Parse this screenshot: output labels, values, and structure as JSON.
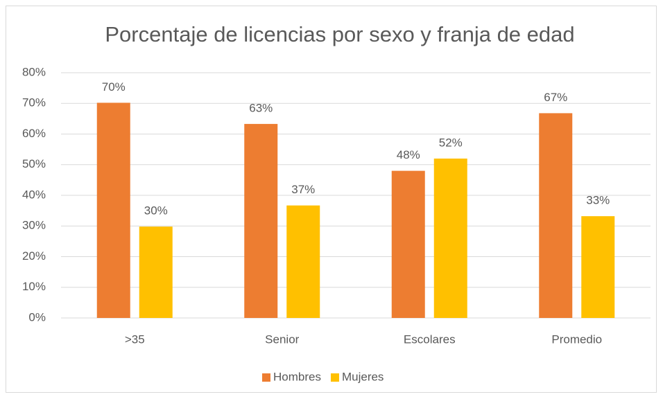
{
  "chart_data": {
    "type": "bar",
    "title": "Porcentaje de licencias por sexo y franja de edad",
    "categories": [
      ">35",
      "Senior",
      "Escolares",
      "Promedio"
    ],
    "series": [
      {
        "name": "Hombres",
        "color": "#ed7d31",
        "values": [
          70.2,
          63.3,
          48,
          66.8
        ],
        "value_labels": [
          "70%",
          "63%",
          "48%",
          "67%"
        ]
      },
      {
        "name": "Mujeres",
        "color": "#ffc000",
        "values": [
          29.8,
          36.7,
          52,
          33.2
        ],
        "value_labels": [
          "30%",
          "37%",
          "52%",
          "33%"
        ]
      }
    ],
    "ylim": [
      0,
      80
    ],
    "yticks": [
      {
        "value": 0,
        "label": "0%"
      },
      {
        "value": 10,
        "label": "10%"
      },
      {
        "value": 20,
        "label": "20%"
      },
      {
        "value": 30,
        "label": "30%"
      },
      {
        "value": 40,
        "label": "40%"
      },
      {
        "value": 50,
        "label": "50%"
      },
      {
        "value": 60,
        "label": "60%"
      },
      {
        "value": 70,
        "label": "70%"
      },
      {
        "value": 80,
        "label": "80%"
      }
    ],
    "grid": true,
    "legend": "bottom"
  }
}
